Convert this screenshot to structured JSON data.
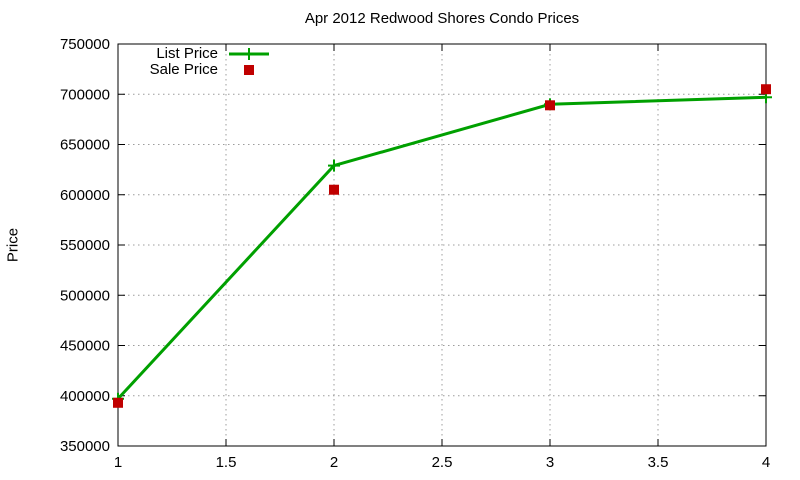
{
  "chart_data": {
    "type": "line",
    "title": "Apr 2012 Redwood Shores Condo Prices",
    "xlabel": "",
    "ylabel": "Price",
    "x": [
      1,
      2,
      3,
      4
    ],
    "series": [
      {
        "name": "List Price",
        "style": "linespoints",
        "marker": "plus",
        "color": "#00a000",
        "values": [
          397000,
          629000,
          690000,
          697000
        ]
      },
      {
        "name": "Sale Price",
        "style": "points",
        "marker": "filled-square",
        "color": "#c00000",
        "values": [
          393000,
          605000,
          689000,
          705000
        ]
      }
    ],
    "xlim": [
      1,
      4
    ],
    "ylim": [
      350000,
      750000
    ],
    "xticks": {
      "values": [
        1,
        1.5,
        2,
        2.5,
        3,
        3.5,
        4
      ],
      "labels": [
        "1",
        "1.5",
        "2",
        "2.5",
        "3",
        "3.5",
        "4"
      ]
    },
    "yticks": {
      "values": [
        350000,
        400000,
        450000,
        500000,
        550000,
        600000,
        650000,
        700000,
        750000
      ],
      "labels": [
        "350000",
        "400000",
        "450000",
        "500000",
        "550000",
        "600000",
        "650000",
        "700000",
        "750000"
      ]
    },
    "grid": true,
    "grid_style": "dotted",
    "grid_color": "#9c9c9c",
    "border_color": "#000000",
    "background_color": "#ffffff",
    "legend_position": "top-left-inside"
  }
}
